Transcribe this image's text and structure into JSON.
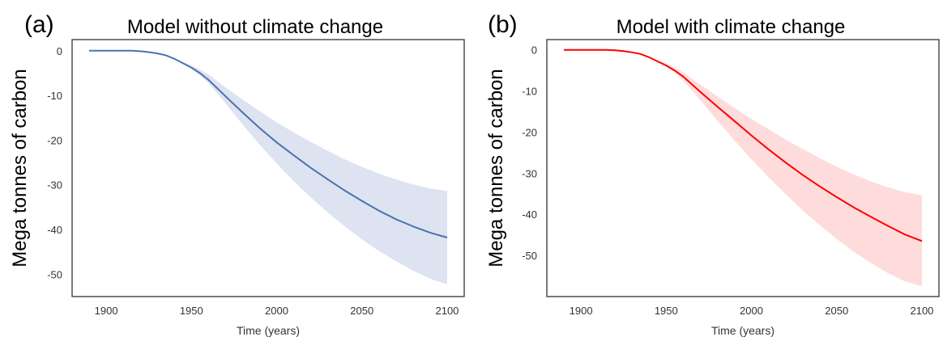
{
  "chart_data": [
    {
      "type": "line",
      "panel_label": "(a)",
      "title": "Model without climate change",
      "xlabel": "Time (years)",
      "ylabel": "Mega tonnes of carbon",
      "xlim": [
        1880,
        2110
      ],
      "ylim": [
        -55,
        2.5
      ],
      "xticks": [
        "1900",
        "1950",
        "2000",
        "2050",
        "2100"
      ],
      "yticks": [
        "0",
        "-10",
        "-20",
        "-30",
        "-40",
        "-50"
      ],
      "grid": false,
      "series": [
        {
          "color": "#4c72b0",
          "band_color": "#dde3f0",
          "x": [
            1890,
            1900,
            1910,
            1915,
            1920,
            1925,
            1930,
            1935,
            1940,
            1945,
            1950,
            1955,
            1960,
            1970,
            1980,
            1990,
            2000,
            2010,
            2020,
            2030,
            2040,
            2050,
            2060,
            2070,
            2080,
            2090,
            2100
          ],
          "y": [
            0,
            0,
            0,
            0,
            -0.1,
            -0.3,
            -0.6,
            -1.0,
            -1.8,
            -2.8,
            -3.8,
            -5.0,
            -6.5,
            -10.2,
            -13.8,
            -17.3,
            -20.5,
            -23.4,
            -26.2,
            -28.8,
            -31.3,
            -33.6,
            -35.8,
            -37.7,
            -39.3,
            -40.7,
            -41.8
          ],
          "lower": [
            0,
            0,
            0,
            0,
            -0.1,
            -0.3,
            -0.6,
            -1.0,
            -1.8,
            -2.8,
            -4.0,
            -5.5,
            -7.2,
            -11.8,
            -16.5,
            -21.0,
            -25.2,
            -29.2,
            -32.8,
            -36.2,
            -39.3,
            -42.2,
            -44.8,
            -47.1,
            -49.2,
            -51.0,
            -52.3
          ],
          "upper": [
            0,
            0,
            0,
            0,
            -0.1,
            -0.3,
            -0.6,
            -1.0,
            -1.7,
            -2.5,
            -3.3,
            -4.2,
            -5.3,
            -8.2,
            -10.9,
            -13.5,
            -16.0,
            -18.3,
            -20.4,
            -22.4,
            -24.3,
            -26.0,
            -27.5,
            -28.8,
            -29.9,
            -30.8,
            -31.4
          ]
        }
      ]
    },
    {
      "type": "line",
      "panel_label": "(b)",
      "title": "Model with climate change",
      "xlabel": "Time (years)",
      "ylabel": "Mega tonnes of carbon",
      "xlim": [
        1880,
        2110
      ],
      "ylim": [
        -60,
        2.5
      ],
      "xticks": [
        "1900",
        "1950",
        "2000",
        "2050",
        "2100"
      ],
      "yticks": [
        "0",
        "-10",
        "-20",
        "-30",
        "-40",
        "-50"
      ],
      "grid": false,
      "series": [
        {
          "color": "#ff0000",
          "band_color": "#ffdcdc",
          "x": [
            1890,
            1900,
            1910,
            1915,
            1920,
            1925,
            1930,
            1935,
            1940,
            1945,
            1950,
            1955,
            1960,
            1970,
            1980,
            1990,
            2000,
            2010,
            2020,
            2030,
            2040,
            2050,
            2060,
            2070,
            2080,
            2090,
            2100
          ],
          "y": [
            0,
            0,
            0,
            0,
            -0.1,
            -0.3,
            -0.6,
            -1.0,
            -1.8,
            -2.8,
            -3.8,
            -5.0,
            -6.5,
            -10.2,
            -13.8,
            -17.3,
            -20.8,
            -24.2,
            -27.4,
            -30.4,
            -33.2,
            -35.8,
            -38.3,
            -40.6,
            -42.8,
            -44.9,
            -46.5
          ],
          "lower": [
            0,
            0,
            0,
            0,
            -0.1,
            -0.3,
            -0.6,
            -1.0,
            -1.8,
            -2.8,
            -4.0,
            -5.6,
            -7.4,
            -12.2,
            -17.2,
            -22.0,
            -26.6,
            -31.0,
            -35.1,
            -39.0,
            -42.6,
            -46.0,
            -49.1,
            -51.8,
            -54.3,
            -56.3,
            -57.5
          ],
          "upper": [
            0,
            0,
            0,
            0,
            -0.1,
            -0.3,
            -0.6,
            -1.0,
            -1.7,
            -2.5,
            -3.3,
            -4.3,
            -5.5,
            -8.4,
            -11.3,
            -14.1,
            -16.8,
            -19.3,
            -21.8,
            -24.1,
            -26.3,
            -28.4,
            -30.3,
            -32.0,
            -33.4,
            -34.6,
            -35.4
          ]
        }
      ]
    }
  ]
}
